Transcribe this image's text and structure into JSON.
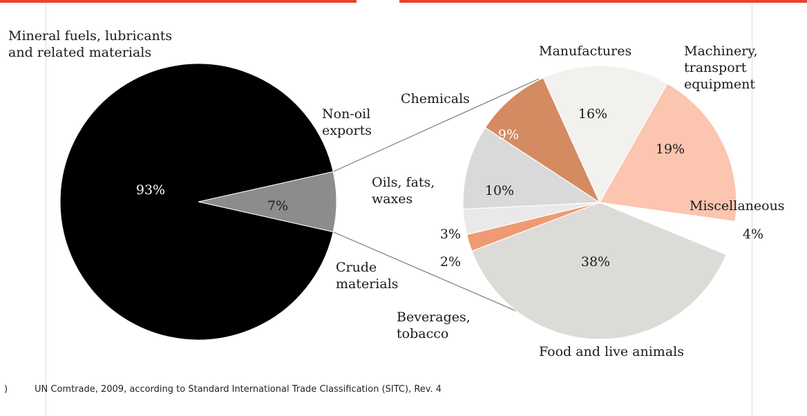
{
  "chart_data": [
    {
      "type": "pie",
      "slices": [
        {
          "label": "Mineral fuels, lubricants and related materials",
          "label_lines": [
            "Mineral fuels, lubricants",
            "and related materials"
          ],
          "value": 93,
          "value_label": "93%",
          "color": "#000000"
        },
        {
          "label": "Non-oil exports",
          "label_lines": [
            "Non-oil",
            "exports"
          ],
          "value": 7,
          "value_label": "7%",
          "color": "#8c8c8c"
        }
      ]
    },
    {
      "type": "pie",
      "slices": [
        {
          "label": "Manufactures",
          "label_lines": [
            "Manufactures"
          ],
          "value": 16,
          "value_label": "16%",
          "color": "#f2f1ee"
        },
        {
          "label": "Machinery, transport equipment",
          "label_lines": [
            "Machinery,",
            "transport",
            "equipment"
          ],
          "value": 19,
          "value_label": "19%",
          "color": "#fbc5b0"
        },
        {
          "label": "Miscellaneous",
          "label_lines": [
            "Miscellaneous"
          ],
          "value": 4,
          "value_label": "4%",
          "color": "#ffffff"
        },
        {
          "label": "Food and live animals",
          "label_lines": [
            "Food and live animals"
          ],
          "value": 38,
          "value_label": "38%",
          "color": "#dcdbd7"
        },
        {
          "label": "Beverages, tobacco",
          "label_lines": [
            "Beverages,",
            "tobacco"
          ],
          "value": 2,
          "value_label": "2%",
          "color": "#ef9a72"
        },
        {
          "label": "Crude materials",
          "label_lines": [
            "Crude",
            "materials"
          ],
          "value": 3,
          "value_label": "3%",
          "color": "#e9e9e9"
        },
        {
          "label": "Oils, fats, waxes",
          "label_lines": [
            "Oils, fats,",
            "waxes"
          ],
          "value": 10,
          "value_label": "10%",
          "color": "#d9d9d9"
        },
        {
          "label": "Chemicals",
          "label_lines": [
            "Chemicals"
          ],
          "value": 9,
          "value_label": "9%",
          "color": "#d48b62"
        }
      ]
    }
  ],
  "footer": {
    "marker": ")",
    "source": "UN Comtrade, 2009, according to Standard International Trade Classification (SITC), Rev. 4"
  }
}
